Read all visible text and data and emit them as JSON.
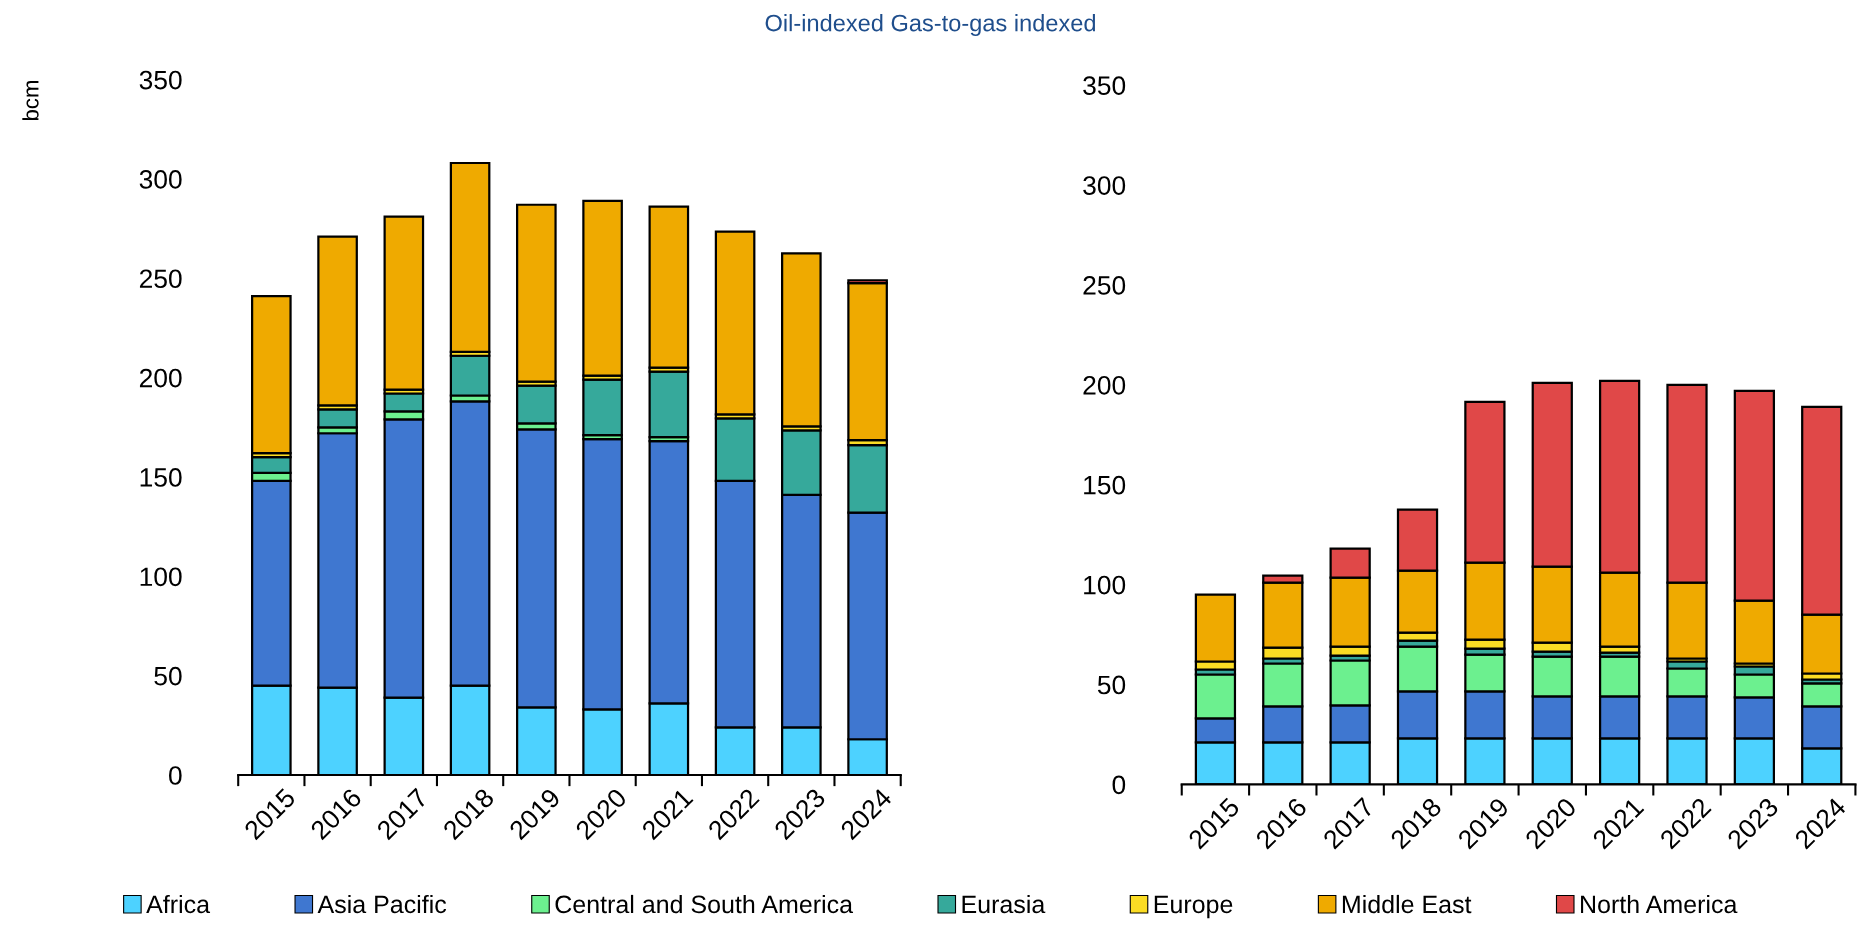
{
  "chart_data": [
    {
      "type": "bar",
      "stacked": true,
      "title": "Oil-indexed Gas-to-gas indexed",
      "ylabel": "bcm",
      "categories": [
        "2015",
        "2016",
        "2017",
        "2018",
        "2019",
        "2020",
        "2021",
        "2022",
        "2023",
        "2024"
      ],
      "ylim": [
        0,
        350
      ],
      "yticks": [
        0,
        50,
        100,
        150,
        200,
        250,
        300,
        350
      ],
      "legend": "bottom",
      "grid": false,
      "series": [
        {
          "name": "Africa",
          "color": "#4dd2ff",
          "values": [
            45,
            44,
            39,
            45,
            34,
            33,
            36,
            24,
            24,
            18
          ]
        },
        {
          "name": "Asia Pacific",
          "color": "#3f77d0",
          "values": [
            103,
            128,
            140,
            143,
            140,
            136,
            132,
            124,
            117,
            114
          ]
        },
        {
          "name": "Central and South America",
          "color": "#6cf08f",
          "values": [
            4,
            3,
            4,
            3,
            3,
            2,
            2,
            null,
            null,
            null
          ]
        },
        {
          "name": "Eurasia",
          "color": "#36a99b",
          "values": [
            8,
            9,
            9,
            20,
            19,
            28,
            33,
            31.5,
            32.5,
            34
          ]
        },
        {
          "name": "Europe",
          "color": "#fbdc24",
          "values": [
            2,
            2,
            2,
            2,
            2,
            2,
            2,
            2,
            2,
            2.5
          ]
        },
        {
          "name": "Middle East",
          "color": "#efaa00",
          "values": [
            79,
            85,
            87,
            95,
            89,
            88,
            81,
            92,
            87,
            79
          ]
        },
        {
          "name": "North America",
          "color": "#e04848",
          "values": [
            null,
            null,
            null,
            null,
            null,
            null,
            null,
            null,
            null,
            1.5
          ]
        }
      ]
    },
    {
      "type": "bar",
      "stacked": true,
      "categories": [
        "2015",
        "2016",
        "2017",
        "2018",
        "2019",
        "2020",
        "2021",
        "2022",
        "2023",
        "2024"
      ],
      "ylim": [
        0,
        350
      ],
      "yticks": [
        0,
        50,
        100,
        150,
        200,
        250,
        300,
        350
      ],
      "grid": false,
      "series": [
        {
          "color": "#4dd2ff",
          "values": [
            21,
            21,
            21,
            23,
            23,
            23,
            23,
            23,
            23,
            18
          ]
        },
        {
          "color": "#3f77d0",
          "values": [
            12,
            18,
            18.5,
            23.5,
            23.5,
            21,
            21,
            21,
            20.5,
            21
          ]
        },
        {
          "color": "#6cf08f",
          "values": [
            22,
            21.5,
            22.5,
            22.5,
            18.5,
            20,
            20,
            14,
            11.5,
            11.5
          ]
        },
        {
          "color": "#36a99b",
          "values": [
            2.5,
            2.5,
            2.5,
            3,
            3,
            2.5,
            2,
            3.5,
            4,
            2
          ]
        },
        {
          "color": "#fbdc24",
          "values": [
            4,
            5.5,
            4.5,
            4,
            4.5,
            4.5,
            3,
            1.5,
            1.5,
            3
          ]
        },
        {
          "color": "#efaa00",
          "values": [
            33.5,
            32.5,
            34.5,
            31,
            38.5,
            38,
            37,
            38,
            31.5,
            29.5
          ]
        },
        {
          "color": "#e04848",
          "values": [
            null,
            3.5,
            14.5,
            30.5,
            80.5,
            92,
            96,
            99,
            105,
            104
          ]
        }
      ]
    }
  ]
}
